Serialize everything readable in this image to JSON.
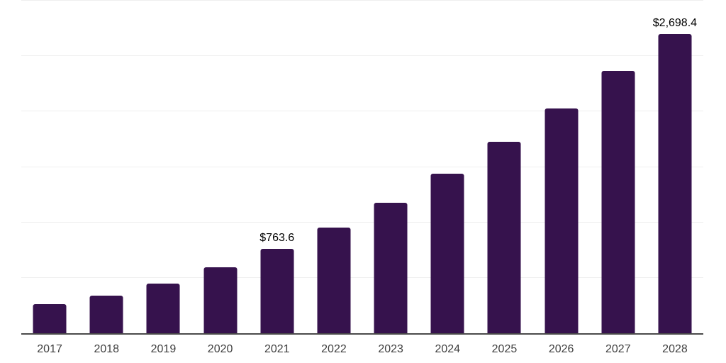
{
  "chart_data": {
    "type": "bar",
    "title": "",
    "xlabel": "",
    "ylabel": "",
    "categories": [
      "2017",
      "2018",
      "2019",
      "2020",
      "2021",
      "2022",
      "2023",
      "2024",
      "2025",
      "2026",
      "2027",
      "2028"
    ],
    "values": [
      260,
      340,
      450,
      595,
      763.6,
      955,
      1180,
      1440,
      1725,
      2025,
      2365,
      2698.4
    ],
    "bar_labels": [
      "",
      "",
      "",
      "",
      "$763.6",
      "",
      "",
      "",
      "",
      "",
      "",
      "$2,698.4"
    ],
    "ylim": [
      0,
      3000
    ],
    "gridline_step": 500,
    "grid": true,
    "legend_position": "none",
    "colors": {
      "bar": "#36124D",
      "gridline": "#EFEFEF",
      "axis": "#4A4A4A",
      "tick_label": "#404040",
      "data_label": "#000000",
      "background": "#FFFFFF"
    }
  }
}
